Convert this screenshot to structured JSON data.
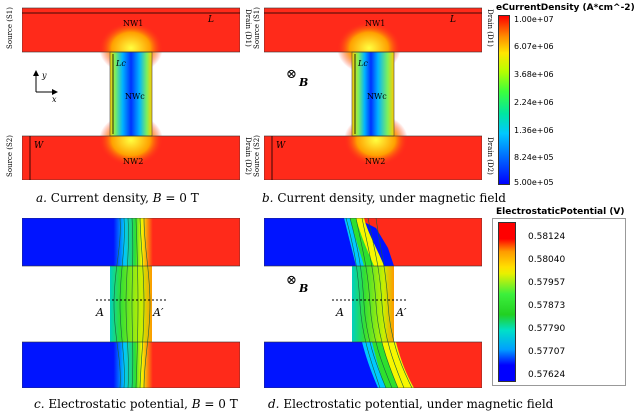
{
  "panels": {
    "a": {
      "caption_prefix": "a.",
      "caption_text": " Current density, ",
      "caption_var": "B",
      "caption_suffix": " = 0 T"
    },
    "b": {
      "caption_prefix": "b.",
      "caption_text": " Current density, under magnetic field"
    },
    "c": {
      "caption_prefix": "c.",
      "caption_text": " Electrostatic potential, ",
      "caption_var": "B",
      "caption_suffix": " = 0 T"
    },
    "d": {
      "caption_prefix": "d.",
      "caption_text": " Electrostatic potential, under magnetic field"
    }
  },
  "labels": {
    "nw1": "NW1",
    "nw2": "NW2",
    "nwc": "NWc",
    "source_s1": "Source (S1)",
    "source_s2": "Source (S2)",
    "drain_d1": "Drain (D1)",
    "drain_d2": "Drain (D2)",
    "L": "L",
    "Lc": "Lc",
    "W": "W",
    "x": "x",
    "y": "y",
    "B": "B",
    "B_symbol": "⊗",
    "A": "A",
    "A_prime": "A′"
  },
  "legend_current": {
    "title": "eCurrentDensity (A*cm^-2)",
    "ticks": [
      "1.00e+07",
      "6.07e+06",
      "3.68e+06",
      "2.24e+06",
      "1.36e+06",
      "8.24e+05",
      "5.00e+05"
    ]
  },
  "legend_potential": {
    "title": "ElectrostaticPotential (V)",
    "ticks": [
      "0.58124",
      "0.58040",
      "0.57957",
      "0.57873",
      "0.57790",
      "0.57707",
      "0.57624"
    ]
  },
  "colors": {
    "red": "#ff2a1a",
    "blue": "#1a1aff",
    "cyan": "#00c8ff",
    "green": "#2ee02e",
    "yellow": "#f7f700",
    "orange": "#ff9a00"
  }
}
